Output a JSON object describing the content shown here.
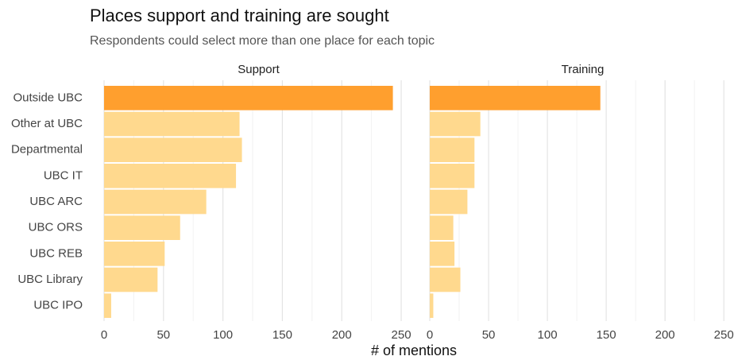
{
  "chart_data": {
    "type": "bar",
    "orientation": "horizontal",
    "title": "Places support and training are sought",
    "subtitle": "Respondents could select more than one place for each topic",
    "xlabel": "# of mentions",
    "categories": [
      "Outside UBC",
      "Other at UBC",
      "Departmental",
      "UBC IT",
      "UBC ARC",
      "UBC ORS",
      "UBC REB",
      "UBC Library",
      "UBC IPO"
    ],
    "series": [
      {
        "name": "Support",
        "values": [
          243,
          114,
          116,
          111,
          86,
          64,
          51,
          45,
          6
        ],
        "colors": [
          "#ff9f2e",
          "#ffd98e",
          "#ffd98e",
          "#ffd98e",
          "#ffd98e",
          "#ffd98e",
          "#ffd98e",
          "#ffd98e",
          "#ffd98e"
        ]
      },
      {
        "name": "Training",
        "values": [
          145,
          43,
          38,
          38,
          32,
          20,
          21,
          26,
          3
        ],
        "colors": [
          "#ff9f2e",
          "#ffd98e",
          "#ffd98e",
          "#ffd98e",
          "#ffd98e",
          "#ffd98e",
          "#ffd98e",
          "#ffd98e",
          "#ffd98e"
        ]
      }
    ],
    "xlim": [
      0,
      260
    ],
    "xticks": [
      0,
      50,
      100,
      150,
      200,
      250
    ],
    "xticks_minor": [
      25,
      75,
      125,
      175,
      225
    ],
    "grid": true
  }
}
